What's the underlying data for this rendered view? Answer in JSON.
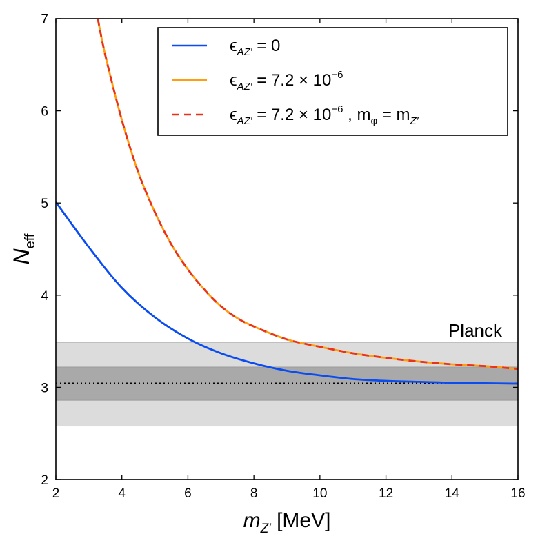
{
  "chart_data": {
    "type": "line",
    "title": "",
    "xlabel": {
      "main": "m",
      "sub": "Z′",
      "unit": " [MeV]"
    },
    "ylabel": {
      "main": "N",
      "sub": "eff"
    },
    "xlim": [
      2,
      16
    ],
    "ylim": [
      2,
      7
    ],
    "xticks": [
      2,
      4,
      6,
      8,
      10,
      12,
      14,
      16
    ],
    "yticks": [
      2,
      3,
      4,
      5,
      6,
      7
    ],
    "xtick_labels": [
      "2",
      "4",
      "6",
      "8",
      "10",
      "12",
      "14",
      "16"
    ],
    "ytick_labels": [
      "2",
      "3",
      "4",
      "5",
      "6",
      "7"
    ],
    "grid": false,
    "legend_position": "top-right",
    "bands": [
      {
        "name": "Planck 2σ",
        "y0": 2.58,
        "y1": 3.49,
        "color": "#dcdcdc"
      },
      {
        "name": "Planck 1σ",
        "y0": 2.86,
        "y1": 3.22,
        "color": "#a9a9a9"
      }
    ],
    "reference_line": {
      "y": 3.046,
      "style": "dotted",
      "color": "#000000"
    },
    "annotation": "Planck",
    "series": [
      {
        "name": "eps_zero",
        "label_prefix": "ϵ",
        "label_sub": "AZ′",
        "label_rest": " = 0",
        "color": "#0a4cf0",
        "style": "solid",
        "x": [
          2,
          3,
          4,
          5,
          6,
          7,
          8,
          9,
          10,
          11,
          12,
          13,
          14,
          15,
          16
        ],
        "y": [
          5.01,
          4.52,
          4.08,
          3.76,
          3.53,
          3.37,
          3.26,
          3.18,
          3.13,
          3.09,
          3.07,
          3.06,
          3.05,
          3.045,
          3.04
        ]
      },
      {
        "name": "eps_72",
        "label_prefix": "ϵ",
        "label_sub": "AZ′",
        "label_rest": " = 7.2 × 10",
        "label_sup": "−6",
        "color": "#ff9f0f",
        "style": "solid",
        "x": [
          3.27,
          3.5,
          4,
          4.5,
          5,
          5.5,
          6,
          6.5,
          7,
          7.5,
          8,
          9,
          10,
          11,
          12,
          13,
          14,
          15,
          16
        ],
        "y": [
          7.0,
          6.6,
          5.9,
          5.33,
          4.9,
          4.55,
          4.28,
          4.06,
          3.88,
          3.75,
          3.66,
          3.52,
          3.44,
          3.37,
          3.32,
          3.28,
          3.25,
          3.23,
          3.2
        ]
      },
      {
        "name": "eps_72_mphi",
        "label_prefix": "ϵ",
        "label_sub": "AZ′",
        "label_rest": " = 7.2 × 10",
        "label_sup": "−6",
        "label_tail": " , m",
        "label_tail_sub": "φ",
        "label_tail2": " = m",
        "label_tail2_sub": "Z′",
        "color": "#e8331a",
        "style": "dashed",
        "x": [
          3.27,
          3.5,
          4,
          4.5,
          5,
          5.5,
          6,
          6.5,
          7,
          7.5,
          8,
          9,
          10,
          11,
          12,
          13,
          14,
          15,
          16
        ],
        "y": [
          7.0,
          6.6,
          5.9,
          5.33,
          4.9,
          4.55,
          4.28,
          4.06,
          3.88,
          3.75,
          3.66,
          3.52,
          3.44,
          3.37,
          3.32,
          3.28,
          3.25,
          3.23,
          3.2
        ]
      }
    ]
  }
}
